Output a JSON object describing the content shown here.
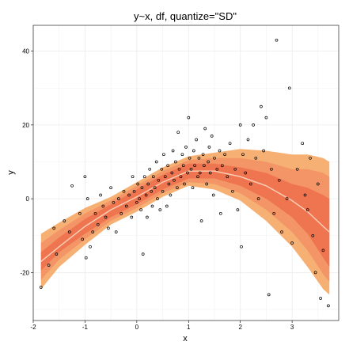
{
  "chart_data": {
    "type": "scatter",
    "title": "y~x, df, quantize=\"SD\"",
    "xlabel": "x",
    "ylabel": "y",
    "xlim": [
      -2.0,
      3.9
    ],
    "ylim": [
      -33,
      47
    ],
    "x_ticks": [
      -2,
      -1,
      0,
      1,
      2,
      3
    ],
    "y_ticks": [
      -20,
      0,
      20,
      40
    ],
    "x_tick_labels": [
      "-2",
      "-1",
      "0",
      "1",
      "2",
      "3"
    ],
    "y_tick_labels": [
      "-20",
      "0",
      "20",
      "40"
    ],
    "grid": true,
    "colors": {
      "band_outer": "#f6b074",
      "band_middle": "#f39566",
      "band_inner": "#ef7550",
      "mean_line": "#fbd0b8",
      "points": "#000000",
      "grid": "#ebebeb",
      "panel_border": "#000000"
    },
    "bands": {
      "x": [
        -1.85,
        -1.5,
        -1.0,
        -0.5,
        0.0,
        0.5,
        1.0,
        1.5,
        2.0,
        2.5,
        3.0,
        3.3,
        3.6,
        3.72
      ],
      "mean": [
        -17,
        -13,
        -7.5,
        -3,
        0.5,
        4.5,
        7.5,
        7.5,
        6,
        3.5,
        -0.5,
        -3.5,
        -7.5,
        -9
      ],
      "sd1_lower": [
        -19.5,
        -14.5,
        -9.5,
        -5,
        -1.5,
        2.5,
        5.5,
        5.5,
        3.5,
        0,
        -5,
        -9.5,
        -16,
        -18.5
      ],
      "sd1_upper": [
        -14.5,
        -10.5,
        -5.5,
        -1.5,
        2.5,
        6.5,
        9.5,
        9.5,
        8.5,
        7,
        4,
        3,
        1,
        0
      ],
      "sd2_lower": [
        -22,
        -16.5,
        -11,
        -6,
        -2.5,
        1.5,
        4.5,
        4,
        1.5,
        -3,
        -9,
        -14,
        -20.5,
        -22.5
      ],
      "sd2_upper": [
        -12,
        -8.5,
        -4,
        -0.5,
        3.5,
        7.5,
        10.5,
        11,
        11,
        10,
        8,
        8,
        7,
        6
      ],
      "sd3_lower": [
        -24.5,
        -18.5,
        -12.5,
        -7,
        -3.5,
        0.5,
        3.5,
        2.5,
        -0.5,
        -6,
        -13,
        -18.5,
        -24.5,
        -26
      ],
      "sd3_upper": [
        -9.5,
        -6.5,
        -2.5,
        0.5,
        4.5,
        8.5,
        11.5,
        12.5,
        13.5,
        13,
        12,
        12,
        11,
        10
      ]
    },
    "points": [
      [
        -1.85,
        -24
      ],
      [
        -1.7,
        -18
      ],
      [
        -1.6,
        -8
      ],
      [
        -1.55,
        -15
      ],
      [
        -1.4,
        -6
      ],
      [
        -1.3,
        -9
      ],
      [
        -1.25,
        3.5
      ],
      [
        -1.1,
        -4
      ],
      [
        -1.05,
        -11
      ],
      [
        -1.0,
        6
      ],
      [
        -0.98,
        -16
      ],
      [
        -0.95,
        0
      ],
      [
        -0.9,
        -13
      ],
      [
        -0.85,
        -9
      ],
      [
        -0.8,
        -4
      ],
      [
        -0.75,
        -7
      ],
      [
        -0.7,
        1
      ],
      [
        -0.65,
        -2
      ],
      [
        -0.6,
        -5
      ],
      [
        -0.55,
        -8
      ],
      [
        -0.5,
        3
      ],
      [
        -0.45,
        -1
      ],
      [
        -0.4,
        -9
      ],
      [
        -0.35,
        0
      ],
      [
        -0.3,
        -4
      ],
      [
        -0.25,
        2
      ],
      [
        -0.2,
        -2
      ],
      [
        -0.15,
        1
      ],
      [
        -0.1,
        -5
      ],
      [
        -0.08,
        6
      ],
      [
        -0.05,
        2
      ],
      [
        0.0,
        -1
      ],
      [
        0.02,
        4
      ],
      [
        0.05,
        0
      ],
      [
        0.08,
        -3
      ],
      [
        0.1,
        3
      ],
      [
        0.12,
        -15
      ],
      [
        0.15,
        6
      ],
      [
        0.18,
        1
      ],
      [
        0.2,
        -5
      ],
      [
        0.22,
        4
      ],
      [
        0.25,
        8
      ],
      [
        0.28,
        2
      ],
      [
        0.3,
        -2
      ],
      [
        0.32,
        6
      ],
      [
        0.35,
        3
      ],
      [
        0.38,
        10
      ],
      [
        0.4,
        0
      ],
      [
        0.42,
        5
      ],
      [
        0.45,
        -3
      ],
      [
        0.48,
        8
      ],
      [
        0.5,
        2
      ],
      [
        0.52,
        12
      ],
      [
        0.55,
        6
      ],
      [
        0.58,
        -2
      ],
      [
        0.6,
        9
      ],
      [
        0.62,
        4
      ],
      [
        0.65,
        1
      ],
      [
        0.68,
        7
      ],
      [
        0.7,
        13
      ],
      [
        0.72,
        5
      ],
      [
        0.75,
        10
      ],
      [
        0.78,
        3
      ],
      [
        0.8,
        18
      ],
      [
        0.82,
        8
      ],
      [
        0.85,
        6
      ],
      [
        0.88,
        12
      ],
      [
        0.9,
        9
      ],
      [
        0.92,
        4
      ],
      [
        0.95,
        14
      ],
      [
        0.98,
        7
      ],
      [
        1.0,
        22
      ],
      [
        1.02,
        11
      ],
      [
        1.05,
        8
      ],
      [
        1.08,
        3
      ],
      [
        1.1,
        13
      ],
      [
        1.12,
        9
      ],
      [
        1.15,
        16
      ],
      [
        1.18,
        6
      ],
      [
        1.2,
        11
      ],
      [
        1.22,
        7
      ],
      [
        1.25,
        -6
      ],
      [
        1.28,
        12
      ],
      [
        1.3,
        9
      ],
      [
        1.32,
        19
      ],
      [
        1.35,
        4
      ],
      [
        1.38,
        10
      ],
      [
        1.4,
        14
      ],
      [
        1.42,
        7
      ],
      [
        1.45,
        17
      ],
      [
        1.48,
        1
      ],
      [
        1.5,
        11
      ],
      [
        1.55,
        8
      ],
      [
        1.6,
        13
      ],
      [
        1.62,
        -4
      ],
      [
        1.65,
        9
      ],
      [
        1.7,
        12
      ],
      [
        1.75,
        6
      ],
      [
        1.8,
        15
      ],
      [
        1.85,
        2
      ],
      [
        1.9,
        8
      ],
      [
        1.95,
        -3
      ],
      [
        2.0,
        20
      ],
      [
        2.02,
        -13
      ],
      [
        2.05,
        12
      ],
      [
        2.1,
        7
      ],
      [
        2.15,
        16
      ],
      [
        2.2,
        4
      ],
      [
        2.25,
        20
      ],
      [
        2.3,
        11
      ],
      [
        2.35,
        0
      ],
      [
        2.4,
        25
      ],
      [
        2.45,
        13
      ],
      [
        2.5,
        22
      ],
      [
        2.55,
        -26
      ],
      [
        2.6,
        8
      ],
      [
        2.65,
        -4
      ],
      [
        2.7,
        43
      ],
      [
        2.75,
        5
      ],
      [
        2.8,
        -9
      ],
      [
        2.9,
        0
      ],
      [
        2.95,
        30
      ],
      [
        3.0,
        -12
      ],
      [
        3.1,
        8
      ],
      [
        3.2,
        15
      ],
      [
        3.25,
        1
      ],
      [
        3.3,
        -3
      ],
      [
        3.35,
        11
      ],
      [
        3.4,
        -10
      ],
      [
        3.45,
        -20
      ],
      [
        3.5,
        4
      ],
      [
        3.55,
        -27
      ],
      [
        3.6,
        -14
      ],
      [
        3.7,
        -29
      ]
    ]
  }
}
